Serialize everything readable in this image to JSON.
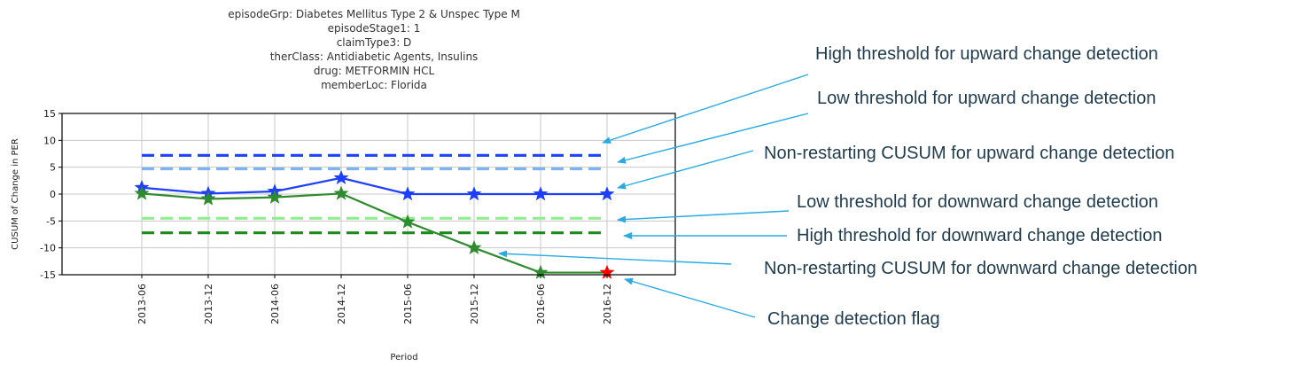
{
  "chart_data": {
    "type": "line",
    "title_lines": [
      "episodeGrp: Diabetes Mellitus Type 2 & Unspec Type M",
      "episodeStage1: 1",
      "claimType3: D",
      "therClass: Antidiabetic Agents, Insulins",
      "drug: METFORMIN HCL",
      "memberLoc: Florida"
    ],
    "xlabel": "Period",
    "ylabel": "CUSUM of Change in PER",
    "categories": [
      "2013-06",
      "2013-12",
      "2014-06",
      "2014-12",
      "2015-06",
      "2015-12",
      "2016-06",
      "2016-12"
    ],
    "ylim": [
      -15,
      15
    ],
    "yticks": [
      15,
      10,
      5,
      0,
      -5,
      -10,
      -15
    ],
    "grid": true,
    "series": [
      {
        "key": "up",
        "color": "#1f3fff",
        "marker": "star",
        "values": [
          1.2,
          0.1,
          0.5,
          3.0,
          0.0,
          0.0,
          0.0,
          0.0
        ]
      },
      {
        "key": "down",
        "color": "#2e8b2e",
        "marker": "star",
        "values": [
          0.1,
          -0.9,
          -0.6,
          0.1,
          -5.2,
          -10.0,
          -14.6,
          -14.6
        ]
      }
    ],
    "thresholds": [
      {
        "key": "high_up",
        "value": 7.2,
        "color": "#1f3fff"
      },
      {
        "key": "low_up",
        "value": 4.7,
        "color": "#7fb2f0"
      },
      {
        "key": "low_down",
        "value": -4.5,
        "color": "#90ee90"
      },
      {
        "key": "high_down",
        "value": -7.2,
        "color": "#1e8a1e"
      }
    ],
    "flag": {
      "category": "2016-12",
      "value": -14.6,
      "color": "#ff0000"
    }
  },
  "annotations": [
    {
      "key": "high_up",
      "text": "High threshold for upward change detection"
    },
    {
      "key": "low_up",
      "text": "Low threshold for upward change detection"
    },
    {
      "key": "up",
      "text": "Non-restarting CUSUM for upward change detection"
    },
    {
      "key": "low_down",
      "text": "Low threshold for downward change detection"
    },
    {
      "key": "high_down",
      "text": "High threshold for downward change detection"
    },
    {
      "key": "down",
      "text": "Non-restarting CUSUM for downward change detection"
    },
    {
      "key": "flag",
      "text": "Change detection flag"
    }
  ],
  "colors": {
    "arrow": "#29abe2"
  }
}
